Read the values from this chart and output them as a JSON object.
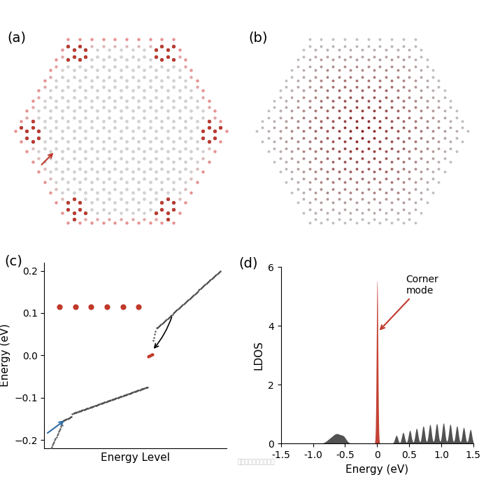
{
  "panel_label_fontsize": 14,
  "hex_lattice_color_light": "#d3d3d3",
  "hex_lattice_color_edge_red": "#c0392b",
  "hex_lattice_color_edge_dark": "#8b1a1a",
  "hex_edge_pink": "#e8a090",
  "panel_b_inner_color": "#8b1a1a",
  "panel_b_mid_color": "#a04040",
  "panel_b_outer_color": "#c0c0c0",
  "energy_dot_color_dark": "#4a4a4a",
  "energy_dot_color_red": "#c0392b",
  "ldos_bar_color": "#3a3a3a",
  "ldos_line_color": "#c0392b",
  "arrow_color_red": "#c0392b",
  "arrow_color_blue": "#2e6da4",
  "inset_dot_color": "#c0392b",
  "ylabel_c": "Energy (eV)",
  "xlabel_c": "Energy Level",
  "ylabel_d": "LDOS",
  "xlabel_d": "Energy (eV)",
  "ylim_c": [
    -0.22,
    0.22
  ],
  "yticks_c": [
    -0.2,
    -0.1,
    0.0,
    0.1,
    0.2
  ],
  "ylim_d": [
    0,
    6
  ],
  "yticks_d": [
    0,
    2,
    4,
    6
  ],
  "xlim_d": [
    -1.5,
    1.5
  ],
  "xticks_d": [
    -1.5,
    -1.0,
    -0.5,
    0.0,
    0.5,
    1.0,
    1.5
  ],
  "corner_mode_text": "Corner\nmode",
  "watermark": "材料科学与凝聚态物理"
}
